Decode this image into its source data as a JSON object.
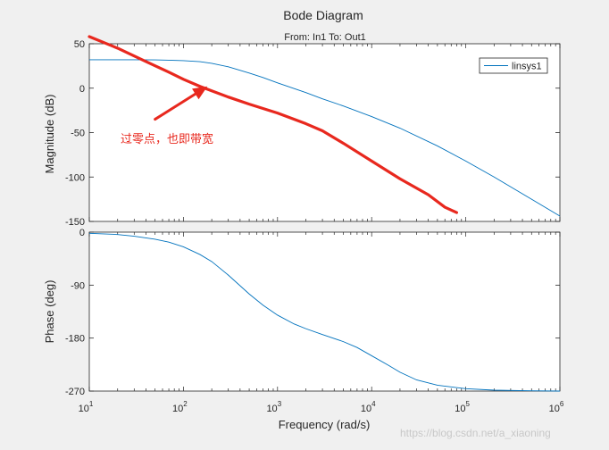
{
  "colors": {
    "background": "#f0f0f0",
    "axes_bg": "#ffffff",
    "line": "#0072bd",
    "annotation": "#e8281e",
    "tick_color": "#262626",
    "grid": "#e6e6e6",
    "watermark": "#c8c8c8"
  },
  "chart_data": [
    {
      "type": "line",
      "panel": "magnitude",
      "title": "Bode Diagram",
      "subtitle": "From: In1  To: Out1",
      "xlabel": "Frequency  (rad/s)",
      "ylabel": "Magnitude (dB)",
      "xscale": "log",
      "xlim": [
        10,
        1000000
      ],
      "ylim": [
        -150,
        50
      ],
      "yticks": [
        "50",
        "0",
        "-50",
        "-100",
        "-150"
      ],
      "ytick_values": [
        50,
        0,
        -50,
        -100,
        -150
      ],
      "legend": {
        "label": "linsys1",
        "placement": "top-right"
      },
      "series": [
        {
          "name": "linsys1",
          "x": [
            10,
            20,
            30,
            50,
            70,
            100,
            150,
            200,
            300,
            500,
            700,
            1000,
            2000,
            3000,
            5000,
            10000,
            20000,
            50000,
            100000,
            200000,
            500000,
            1000000
          ],
          "y": [
            32,
            32,
            32,
            31.8,
            31.5,
            31,
            29.8,
            28,
            24,
            17,
            12,
            6,
            -5,
            -12,
            -20,
            -32,
            -45,
            -65,
            -82,
            -100,
            -125,
            -144
          ]
        }
      ],
      "annotation": {
        "text": "过零点，也即带宽",
        "hand_drawn_line": {
          "x": [
            10,
            20,
            40,
            70,
            100,
            150,
            200,
            300,
            500,
            1000,
            2000,
            3000,
            5000,
            10000,
            20000,
            40000,
            60000,
            80000
          ],
          "y": [
            58,
            45,
            30,
            18,
            10,
            2,
            -3,
            -10,
            -18,
            -28,
            -40,
            -48,
            -62,
            -82,
            -102,
            -120,
            -134,
            -140
          ]
        },
        "arrow": {
          "from": [
            50,
            -35
          ],
          "to": [
            180,
            2
          ]
        }
      }
    },
    {
      "type": "line",
      "panel": "phase",
      "xlabel": "Frequency  (rad/s)",
      "ylabel": "Phase (deg)",
      "xscale": "log",
      "xlim": [
        10,
        1000000
      ],
      "ylim": [
        -270,
        0
      ],
      "yticks": [
        "0",
        "-90",
        "-180",
        "-270"
      ],
      "ytick_values": [
        0,
        -90,
        -180,
        -270
      ],
      "xtick_values": [
        10,
        100,
        1000,
        10000,
        100000,
        1000000
      ],
      "xtick_bases": [
        "10",
        "10",
        "10",
        "10",
        "10",
        "10"
      ],
      "xtick_exps": [
        "1",
        "2",
        "3",
        "4",
        "5",
        "6"
      ],
      "series": [
        {
          "name": "linsys1",
          "x": [
            10,
            20,
            30,
            50,
            70,
            100,
            150,
            200,
            300,
            500,
            700,
            1000,
            1500,
            2000,
            3000,
            5000,
            7000,
            10000,
            15000,
            20000,
            30000,
            50000,
            100000,
            200000,
            500000,
            1000000
          ],
          "y": [
            -2,
            -4,
            -7,
            -12,
            -17,
            -25,
            -38,
            -50,
            -73,
            -105,
            -124,
            -141,
            -156,
            -164,
            -174,
            -186,
            -196,
            -210,
            -226,
            -238,
            -251,
            -260,
            -266,
            -268.5,
            -269.5,
            -270
          ]
        }
      ]
    }
  ],
  "watermark": "https://blog.csdn.net/a_xiaoning"
}
